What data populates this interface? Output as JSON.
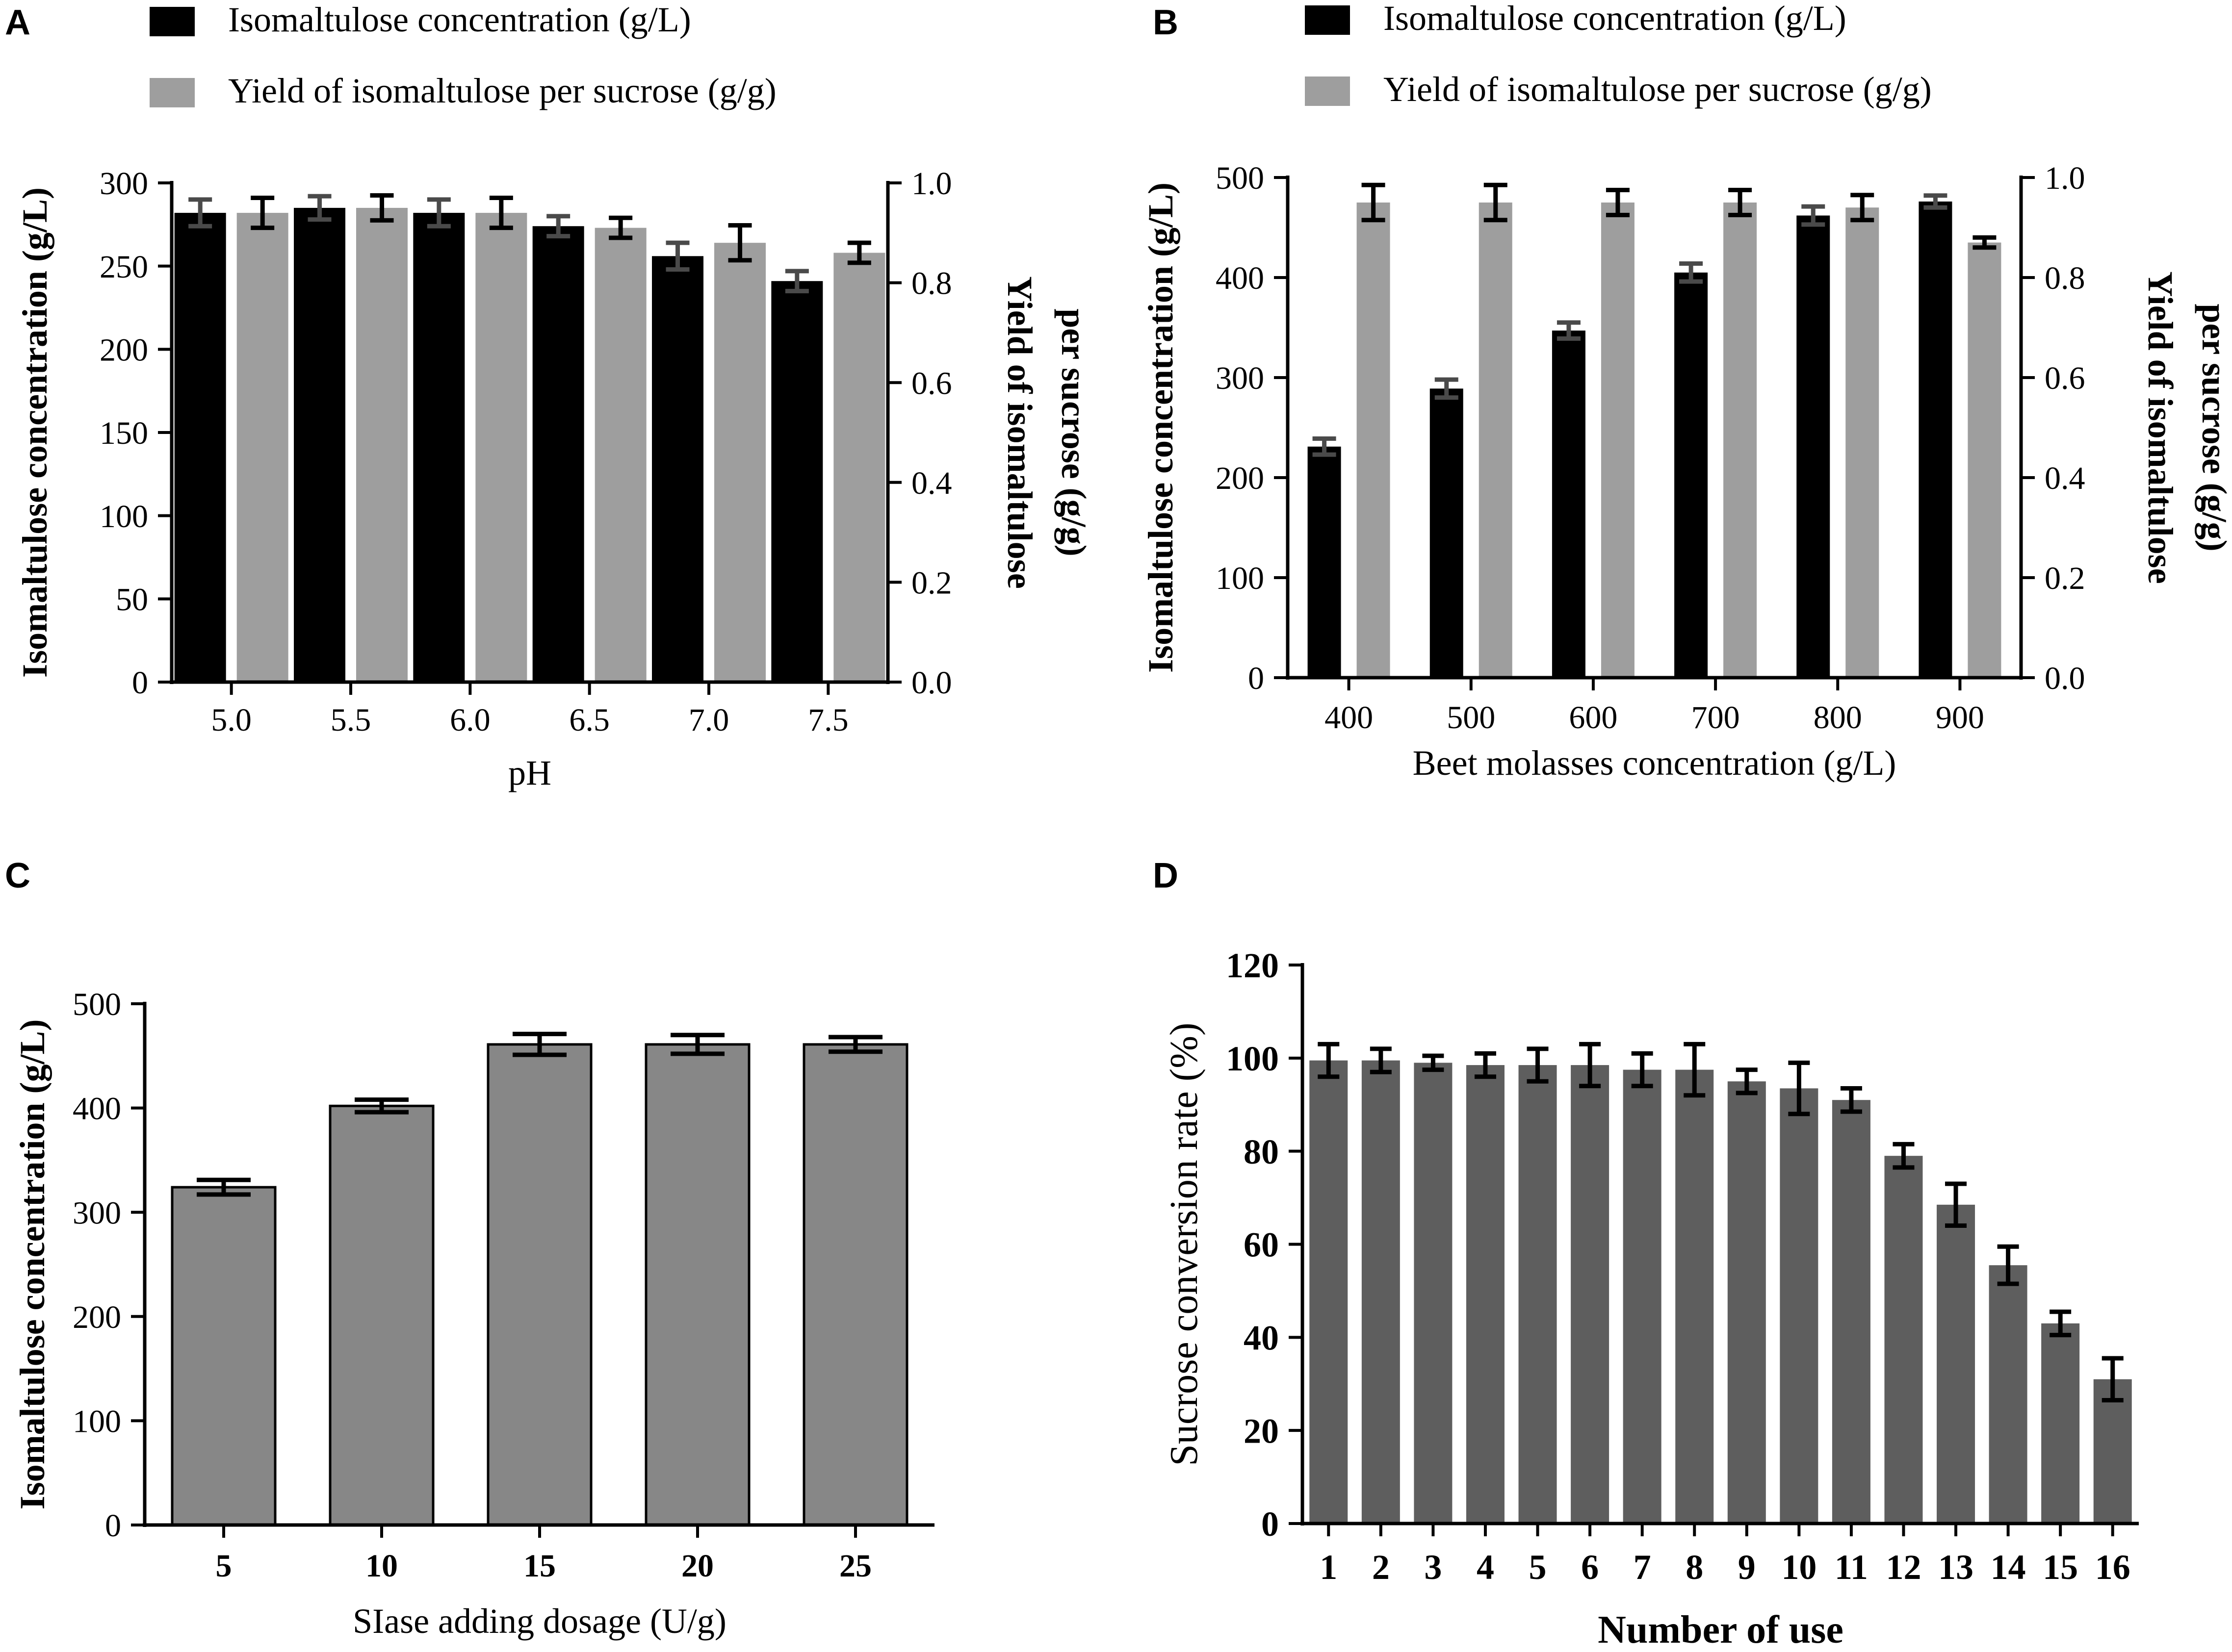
{
  "colors": {
    "black_bar": "#000000",
    "light_gray_bar": "#9e9e9e",
    "mid_gray_bar": "#878787",
    "dark_gray_bar": "#5e5e5e",
    "axis": "#000000",
    "background": "#ffffff"
  },
  "chart_data": [
    {
      "panel": "A",
      "type": "bar",
      "title": "",
      "xlabel": "pH",
      "ylabel": "Isomaltulose concentration (g/L)",
      "y2label_line1": "Yield of isomaltulose",
      "y2label_line2": "per sucrose (g/g)",
      "categories": [
        "5.0",
        "5.5",
        "6.0",
        "6.5",
        "7.0",
        "7.5"
      ],
      "ylim": [
        0,
        300
      ],
      "yticks": [
        0,
        50,
        100,
        150,
        200,
        250,
        300
      ],
      "ytick_labels": [
        "0",
        "50",
        "100",
        "150",
        "200",
        "250",
        "300"
      ],
      "y2lim": [
        0,
        1.0
      ],
      "y2ticks": [
        0,
        0.2,
        0.4,
        0.6,
        0.8,
        1.0
      ],
      "y2tick_labels": [
        "0.0",
        "0.2",
        "0.4",
        "0.6",
        "0.8",
        "1.0"
      ],
      "series": [
        {
          "name": "Isomaltulose concentration (g/L)",
          "axis": "left",
          "color": "#000000",
          "values": [
            282,
            285,
            282,
            274,
            256,
            241
          ],
          "errors": [
            8,
            7,
            8,
            6,
            8,
            6
          ]
        },
        {
          "name": "Yield of isomaltulose per sucrose (g/g)",
          "axis": "right",
          "color": "#9e9e9e",
          "values": [
            0.94,
            0.95,
            0.94,
            0.91,
            0.88,
            0.86
          ],
          "errors": [
            0.03,
            0.025,
            0.03,
            0.02,
            0.035,
            0.02
          ]
        }
      ],
      "legend": "top-left"
    },
    {
      "panel": "B",
      "type": "bar",
      "title": "",
      "xlabel": "Beet molasses concentration (g/L)",
      "ylabel": "Isomaltulose concentration (g/L)",
      "y2label_line1": "Yield of isomaltulose",
      "y2label_line2": "per sucrose (g/g)",
      "categories": [
        "400",
        "500",
        "600",
        "700",
        "800",
        "900"
      ],
      "ylim": [
        0,
        500
      ],
      "yticks": [
        0,
        100,
        200,
        300,
        400,
        500
      ],
      "ytick_labels": [
        "0",
        "100",
        "200",
        "300",
        "400",
        "500"
      ],
      "y2lim": [
        0,
        1.0
      ],
      "y2ticks": [
        0,
        0.2,
        0.4,
        0.6,
        0.8,
        1.0
      ],
      "y2tick_labels": [
        "0.0",
        "0.2",
        "0.4",
        "0.6",
        "0.8",
        "1.0"
      ],
      "series": [
        {
          "name": "Isomaltulose concentration (g/L)",
          "axis": "left",
          "color": "#000000",
          "values": [
            231,
            289,
            347,
            405,
            462,
            476
          ],
          "errors": [
            8,
            9,
            8,
            9,
            9,
            6
          ]
        },
        {
          "name": "Yield of isomaltulose per sucrose (g/g)",
          "axis": "right",
          "color": "#9e9e9e",
          "values": [
            0.95,
            0.95,
            0.95,
            0.95,
            0.94,
            0.87
          ],
          "errors": [
            0.035,
            0.035,
            0.025,
            0.025,
            0.025,
            0.01
          ]
        }
      ],
      "legend": "top-left"
    },
    {
      "panel": "C",
      "type": "bar",
      "title": "",
      "xlabel": "SIase adding dosage (U/g)",
      "ylabel": "Isomaltulose concentration (g/L)",
      "categories": [
        "5",
        "10",
        "15",
        "20",
        "25"
      ],
      "ylim": [
        0,
        500
      ],
      "yticks": [
        0,
        100,
        200,
        300,
        400,
        500
      ],
      "ytick_labels": [
        "0",
        "100",
        "200",
        "300",
        "400",
        "500"
      ],
      "series": [
        {
          "name": "Isomaltulose concentration (g/L)",
          "color": "#878787",
          "values": [
            324,
            402,
            461,
            461,
            461
          ],
          "errors": [
            7,
            6,
            10,
            9,
            7
          ]
        }
      ]
    },
    {
      "panel": "D",
      "type": "bar",
      "title": "",
      "xlabel": "Number of use",
      "ylabel": "Sucrose conversion rate (%)",
      "categories": [
        "1",
        "2",
        "3",
        "4",
        "5",
        "6",
        "7",
        "8",
        "9",
        "10",
        "11",
        "12",
        "13",
        "14",
        "15",
        "16"
      ],
      "ylim": [
        0,
        120
      ],
      "yticks": [
        0,
        20,
        40,
        60,
        80,
        100,
        120
      ],
      "ytick_labels": [
        "0",
        "20",
        "40",
        "60",
        "80",
        "100",
        "120"
      ],
      "series": [
        {
          "name": "Sucrose conversion rate (%)",
          "color": "#5e5e5e",
          "values": [
            99.5,
            99.5,
            99,
            98.5,
            98.5,
            98.5,
            97.5,
            97.5,
            95,
            93.5,
            91,
            79,
            68.5,
            55.5,
            43,
            31
          ],
          "errors": [
            3.5,
            2.5,
            1.5,
            2.5,
            3.5,
            4.5,
            3.5,
            5.5,
            2.5,
            5.5,
            2.5,
            2.5,
            4.5,
            4,
            2.5,
            4.5
          ]
        }
      ]
    }
  ]
}
